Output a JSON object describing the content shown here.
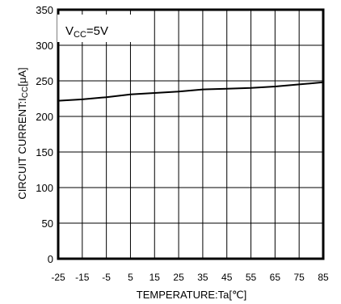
{
  "chart_data": {
    "type": "line",
    "ylabel_main": "CIRCUIT CURRENT:I",
    "ylabel_sub": "CC",
    "ylabel_unit": "[μA]",
    "xlabel": "TEMPERATURE:Ta[℃]",
    "annotation_main": "V",
    "annotation_sub": "CC",
    "annotation_value": "=5V",
    "xlim": [
      -25,
      85
    ],
    "ylim": [
      0,
      350
    ],
    "x_ticks": [
      -25,
      -15,
      -5,
      5,
      15,
      25,
      35,
      45,
      55,
      65,
      75,
      85
    ],
    "x_tick_labels": [
      "-25",
      "-15",
      "-5",
      "5",
      "15",
      "25",
      "35",
      "45",
      "55",
      "65",
      "75",
      "85"
    ],
    "y_ticks": [
      0,
      50,
      100,
      150,
      200,
      250,
      300,
      350
    ],
    "y_tick_labels": [
      "0",
      "50",
      "100",
      "150",
      "200",
      "250",
      "300",
      "350"
    ],
    "grid": true,
    "series": [
      {
        "color": "#000000",
        "x": [
          -25,
          -15,
          -5,
          5,
          15,
          25,
          35,
          45,
          55,
          65,
          75,
          85
        ],
        "y": [
          222,
          224,
          227,
          231,
          233,
          235,
          238,
          239,
          240,
          242,
          245,
          248
        ]
      }
    ]
  }
}
